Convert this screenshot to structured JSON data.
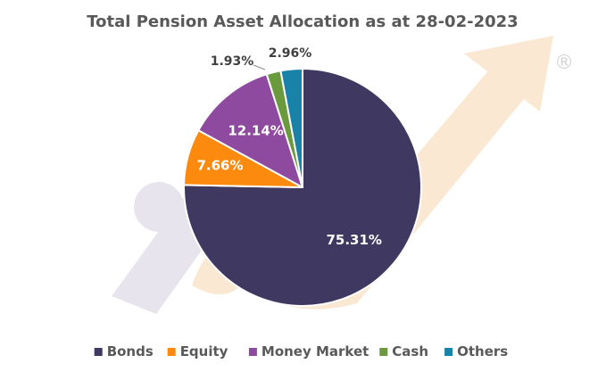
{
  "chart_data": {
    "type": "pie",
    "title": "Total Pension Asset Allocation as at 28-02-2023",
    "start_angle_deg": 0,
    "direction": "clockwise",
    "legend_position": "bottom",
    "slices": [
      {
        "name": "Bonds",
        "value": 75.31,
        "label": "75.31%",
        "color": "#3f3860"
      },
      {
        "name": "Equity",
        "value": 7.66,
        "label": "7.66%",
        "color": "#fb8a0f"
      },
      {
        "name": "Money Market",
        "value": 12.14,
        "label": "12.14%",
        "color": "#8e4a9e"
      },
      {
        "name": "Cash",
        "value": 1.93,
        "label": "1.93%",
        "color": "#6a9a3c"
      },
      {
        "name": "Others",
        "value": 2.96,
        "label": "2.96%",
        "color": "#1882a8"
      }
    ]
  },
  "watermark": {
    "registered_mark": "®",
    "colors": {
      "purple": "#e7e4ee",
      "peach": "#fbe8d3"
    }
  }
}
